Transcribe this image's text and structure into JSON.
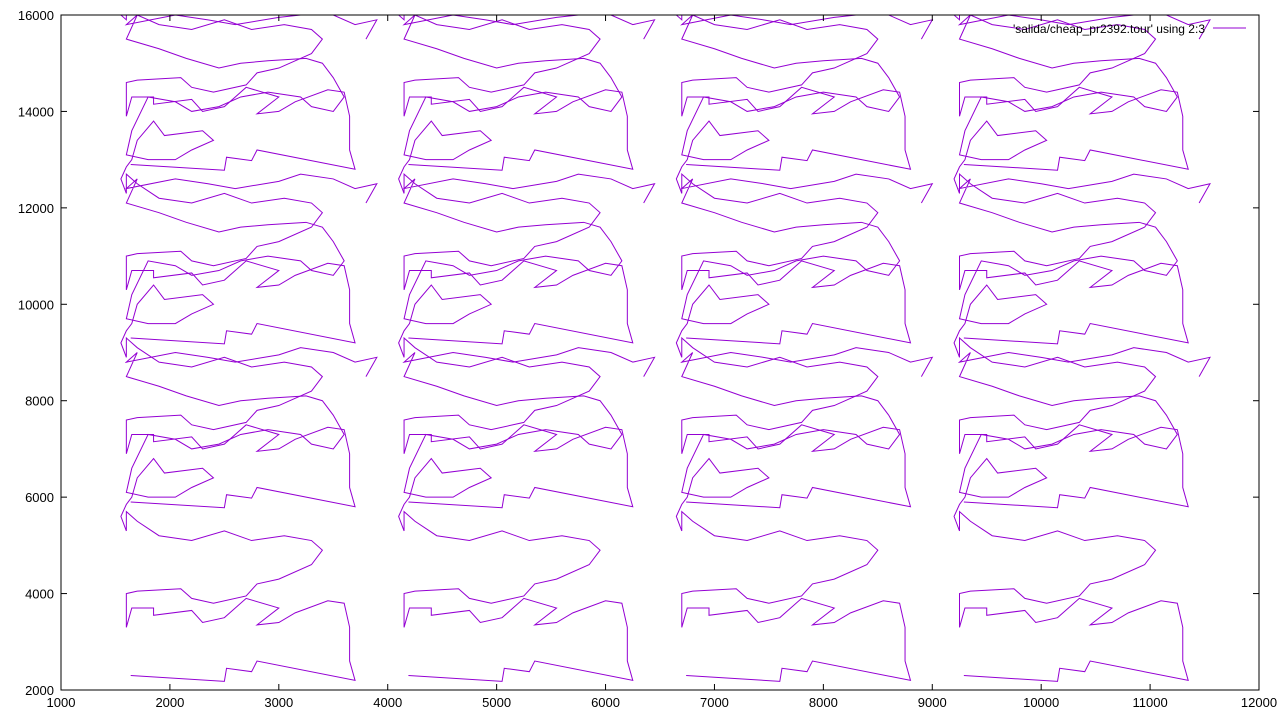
{
  "chart_data": {
    "type": "line",
    "title": "",
    "xlabel": "",
    "ylabel": "",
    "xlim": [
      1000,
      12000
    ],
    "ylim": [
      2000,
      16000
    ],
    "xticks": [
      1000,
      2000,
      3000,
      4000,
      5000,
      6000,
      7000,
      8000,
      9000,
      10000,
      11000,
      12000
    ],
    "yticks": [
      2000,
      4000,
      6000,
      8000,
      10000,
      12000,
      14000,
      16000
    ],
    "grid": false,
    "legend_position": "top-right",
    "series": [
      {
        "name": "'salida/cheap_pr2392.tour' using 2:3",
        "color": "#9400d3",
        "note_tiles": "pattern repeats in a 4x4 grid of tiles with x offsets 0,2550,5100,7650 and y offsets 0,7000",
        "points": [
          [
            1640,
            2300
          ],
          [
            2500,
            2180
          ],
          [
            2520,
            2450
          ],
          [
            2750,
            2380
          ],
          [
            2800,
            2600
          ],
          [
            3700,
            2200
          ],
          [
            3650,
            2600
          ],
          [
            3650,
            3300
          ],
          [
            3600,
            3800
          ],
          [
            3450,
            3850
          ],
          [
            3150,
            3600
          ],
          [
            3000,
            3400
          ],
          [
            2800,
            3350
          ],
          [
            3000,
            3700
          ],
          [
            2700,
            3900
          ],
          [
            2500,
            3500
          ],
          [
            2300,
            3400
          ],
          [
            2200,
            3650
          ],
          [
            1850,
            3550
          ],
          [
            1850,
            3700
          ],
          [
            1650,
            3700
          ],
          [
            1600,
            3300
          ],
          [
            1600,
            4000
          ],
          [
            1700,
            4050
          ],
          [
            2100,
            4100
          ],
          [
            2200,
            3900
          ],
          [
            2400,
            3800
          ],
          [
            2700,
            3950
          ],
          [
            2800,
            4200
          ],
          [
            3000,
            4300
          ],
          [
            3300,
            4600
          ],
          [
            3400,
            4900
          ],
          [
            3300,
            5100
          ],
          [
            3050,
            5200
          ],
          [
            2750,
            5100
          ],
          [
            2500,
            5300
          ],
          [
            2200,
            5100
          ],
          [
            1900,
            5200
          ],
          [
            1700,
            5500
          ],
          [
            1600,
            5700
          ],
          [
            1600,
            5300
          ],
          [
            1550,
            5600
          ],
          [
            1600,
            5850
          ],
          [
            1650,
            6000
          ],
          [
            1700,
            6400
          ],
          [
            1850,
            6800
          ],
          [
            1950,
            6500
          ],
          [
            2300,
            6600
          ],
          [
            2400,
            6400
          ],
          [
            2200,
            6200
          ],
          [
            2050,
            6000
          ],
          [
            1800,
            6000
          ],
          [
            1600,
            6100
          ],
          [
            1650,
            6600
          ],
          [
            1800,
            7300
          ],
          [
            2050,
            7200
          ],
          [
            2200,
            7000
          ],
          [
            2450,
            7100
          ],
          [
            2650,
            7300
          ],
          [
            2900,
            7400
          ],
          [
            3200,
            7300
          ],
          [
            3300,
            7100
          ],
          [
            3500,
            7000
          ],
          [
            3600,
            7300
          ],
          [
            3500,
            7700
          ],
          [
            3400,
            8000
          ],
          [
            3250,
            8100
          ],
          [
            2900,
            8050
          ],
          [
            2650,
            8000
          ],
          [
            2450,
            7900
          ],
          [
            2150,
            8100
          ],
          [
            1900,
            8300
          ],
          [
            1600,
            8500
          ],
          [
            1700,
            9000
          ],
          [
            1600,
            8800
          ],
          [
            2050,
            9000
          ],
          [
            2350,
            8900
          ],
          [
            2600,
            8800
          ],
          [
            3000,
            8950
          ],
          [
            3200,
            9100
          ],
          [
            3500,
            9000
          ],
          [
            3700,
            8800
          ],
          [
            3900,
            8900
          ],
          [
            3800,
            8500
          ]
        ]
      }
    ]
  }
}
